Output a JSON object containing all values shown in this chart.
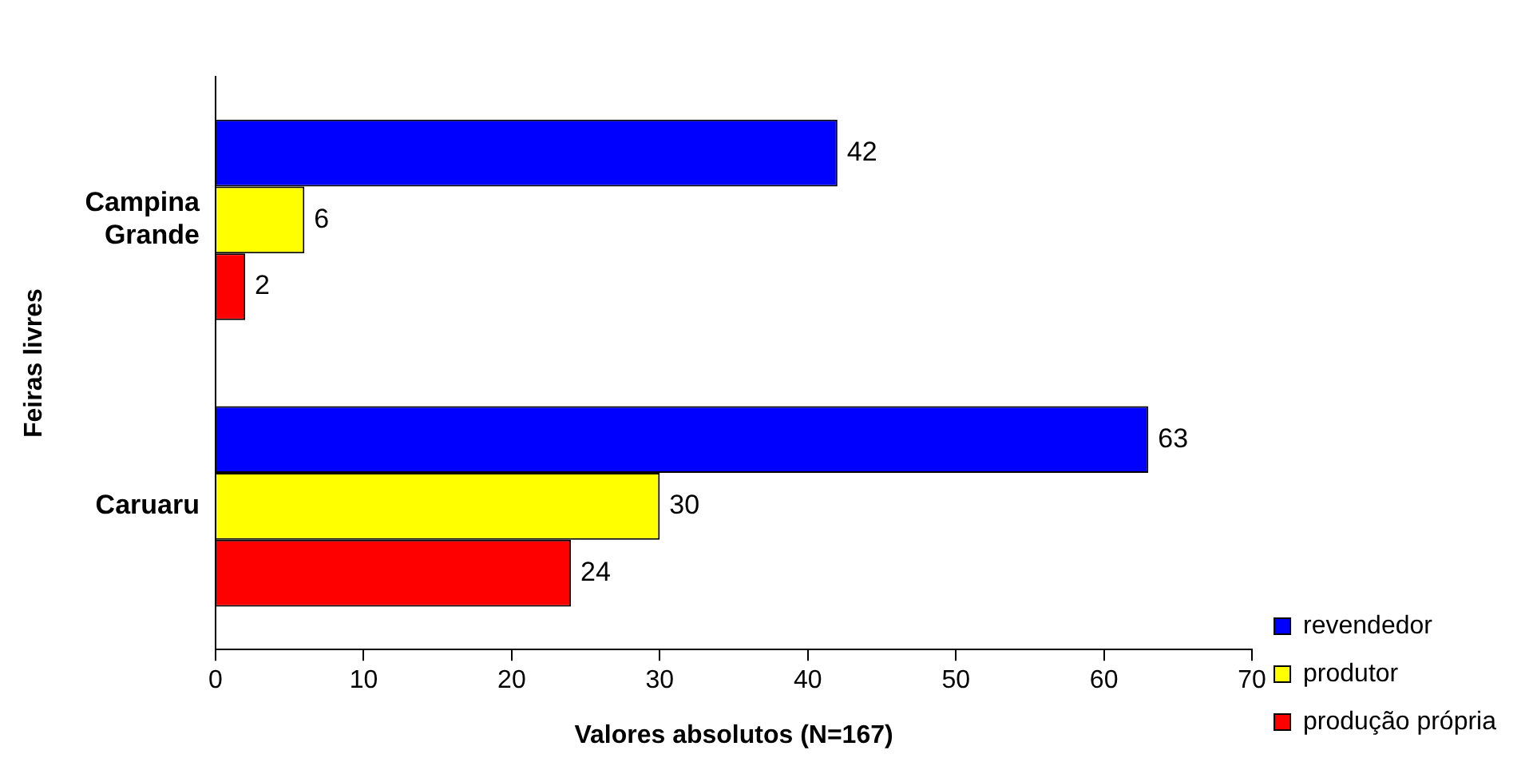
{
  "chart_data": {
    "type": "bar",
    "orientation": "horizontal",
    "xlabel": "Valores absolutos (N=167)",
    "ylabel": "Feiras livres",
    "categories": [
      "Campina Grande",
      "Caruaru"
    ],
    "series": [
      {
        "name": "revendedor",
        "color": "#0000ff",
        "values": [
          42,
          63
        ]
      },
      {
        "name": "produtor",
        "color": "#ffff00",
        "values": [
          6,
          30
        ]
      },
      {
        "name": "produção própria",
        "color": "#ff0000",
        "values": [
          2,
          24
        ]
      }
    ],
    "xlim": [
      0,
      70
    ],
    "xticks": [
      0,
      10,
      20,
      30,
      40,
      50,
      60,
      70
    ],
    "data_labels": true,
    "grid": false,
    "legend": "bottom right"
  }
}
